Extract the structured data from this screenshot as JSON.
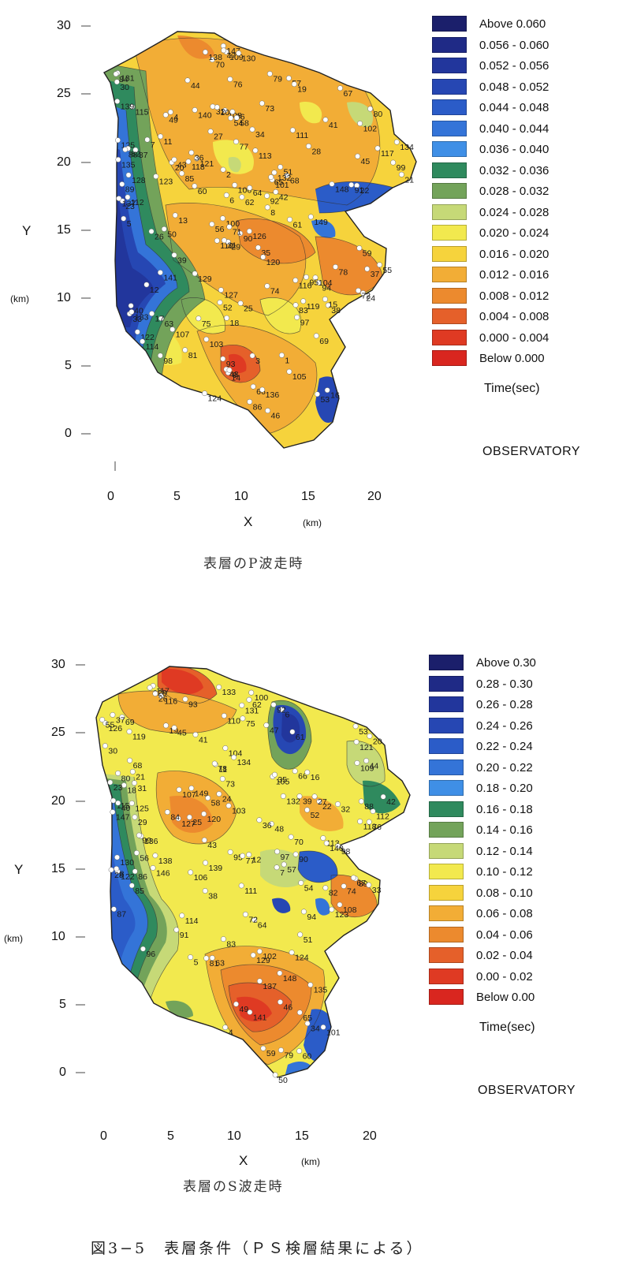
{
  "maps": [
    {
      "id": "p",
      "caption": "表層のP波走時",
      "x_ticks": [
        "0",
        "5",
        "10",
        "15",
        "20"
      ],
      "y_ticks": [
        "30",
        "25",
        "20",
        "15",
        "10",
        "5",
        "0"
      ],
      "x_label": "X",
      "x_unit": "(km)",
      "y_label": "Y",
      "y_unit": "(km)",
      "legend_title": "Time(sec)",
      "legend_note": "OBSERVATORY",
      "legend": [
        {
          "label": "Above   0.060",
          "color": "#1b1f6b"
        },
        {
          "label": "0.056 - 0.060",
          "color": "#1f2a86"
        },
        {
          "label": "0.052 - 0.056",
          "color": "#22369c"
        },
        {
          "label": "0.048 - 0.052",
          "color": "#2647b3"
        },
        {
          "label": "0.044 - 0.048",
          "color": "#2b5cc8"
        },
        {
          "label": "0.040 - 0.044",
          "color": "#3474d8"
        },
        {
          "label": "0.036 - 0.040",
          "color": "#3f8fe6"
        },
        {
          "label": "0.032 - 0.036",
          "color": "#2f8a5e"
        },
        {
          "label": "0.028 - 0.032",
          "color": "#73a35a"
        },
        {
          "label": "0.024 - 0.028",
          "color": "#c6d977"
        },
        {
          "label": "0.020 - 0.024",
          "color": "#f2e94e"
        },
        {
          "label": "0.016 - 0.020",
          "color": "#f6d33c"
        },
        {
          "label": "0.012 - 0.016",
          "color": "#f2ad36"
        },
        {
          "label": "0.008 - 0.012",
          "color": "#ec8a2e"
        },
        {
          "label": "0.004 - 0.008",
          "color": "#e5602a"
        },
        {
          "label": "0.000 - 0.004",
          "color": "#df3a23"
        },
        {
          "label": "Below   0.000",
          "color": "#d9261f"
        }
      ],
      "stations": [
        "112",
        "110",
        "111",
        "108",
        "113",
        "122",
        "121",
        "96",
        "101",
        "94",
        "115",
        "109",
        "116",
        "117",
        "100",
        "93",
        "6",
        "4",
        "107",
        "104",
        "118",
        "123",
        "97",
        "99",
        "92",
        "14",
        "8",
        "102",
        "119",
        "105",
        "98",
        "3",
        "13",
        "11",
        "70",
        "106",
        "18",
        "95",
        "20",
        "7",
        "2",
        "66",
        "64",
        "61",
        "24",
        "22",
        "25",
        "16",
        "1",
        "147",
        "68",
        "69",
        "62",
        "57",
        "19",
        "26",
        "21",
        "12",
        "63",
        "65",
        "67",
        "60",
        "59",
        "30",
        "58",
        "56",
        "29",
        "32",
        "33",
        "34",
        "140",
        "149",
        "141",
        "148",
        "139",
        "133",
        "46",
        "43",
        "44",
        "37",
        "38",
        "39",
        "40",
        "55",
        "36",
        "35",
        "128",
        "126",
        "132",
        "131",
        "124",
        "53",
        "48",
        "47",
        "45",
        "49",
        "78",
        "76",
        "77",
        "50",
        "73",
        "74",
        "130",
        "125",
        "127",
        "136",
        "134",
        "51",
        "79",
        "83",
        "82",
        "90",
        "86",
        "135",
        "84",
        "87",
        "88",
        "89",
        "81",
        "71",
        "72",
        "75",
        "54",
        "41",
        "42",
        "9",
        "5",
        "10",
        "15",
        "17",
        "23",
        "27",
        "28",
        "31",
        "52",
        "80",
        "85",
        "91",
        "103",
        "114",
        "120",
        "129",
        "137",
        "138"
      ]
    },
    {
      "id": "s",
      "caption": "表層のS波走時",
      "x_ticks": [
        "0",
        "5",
        "10",
        "15",
        "20"
      ],
      "y_ticks": [
        "30",
        "25",
        "20",
        "15",
        "10",
        "5",
        "0"
      ],
      "x_label": "X",
      "x_unit": "(km)",
      "y_label": "Y",
      "y_unit": "(km)",
      "legend_title": "Time(sec)",
      "legend_note": "OBSERVATORY",
      "legend": [
        {
          "label": "Above   0.30",
          "color": "#1b1f6b"
        },
        {
          "label": "0.28 - 0.30",
          "color": "#1f2a86"
        },
        {
          "label": "0.26 - 0.28",
          "color": "#22369c"
        },
        {
          "label": "0.24 - 0.26",
          "color": "#2647b3"
        },
        {
          "label": "0.22 - 0.24",
          "color": "#2b5cc8"
        },
        {
          "label": "0.20 - 0.22",
          "color": "#3474d8"
        },
        {
          "label": "0.18 - 0.20",
          "color": "#3f8fe6"
        },
        {
          "label": "0.16 - 0.18",
          "color": "#2f8a5e"
        },
        {
          "label": "0.14 - 0.16",
          "color": "#73a35a"
        },
        {
          "label": "0.12 - 0.14",
          "color": "#c6d977"
        },
        {
          "label": "0.10 - 0.12",
          "color": "#f2e94e"
        },
        {
          "label": "0.08 - 0.10",
          "color": "#f6d33c"
        },
        {
          "label": "0.06 - 0.08",
          "color": "#f2ad36"
        },
        {
          "label": "0.04 - 0.06",
          "color": "#ec8a2e"
        },
        {
          "label": "0.02 - 0.04",
          "color": "#e5602a"
        },
        {
          "label": "0.00 - 0.02",
          "color": "#df3a23"
        },
        {
          "label": "Below   0.00",
          "color": "#d9261f"
        }
      ],
      "stations": [
        "112",
        "110",
        "111",
        "108",
        "113",
        "122",
        "120",
        "117",
        "109",
        "115",
        "116",
        "101",
        "94",
        "103",
        "107",
        "104",
        "118",
        "123",
        "97",
        "89",
        "6",
        "102",
        "119",
        "105",
        "98",
        "92",
        "8",
        "4",
        "11",
        "5",
        "66",
        "70",
        "106",
        "95",
        "20",
        "18",
        "147",
        "64",
        "61",
        "24",
        "22",
        "25",
        "16",
        "7",
        "68",
        "69",
        "62",
        "57",
        "19",
        "21",
        "23",
        "148",
        "63",
        "65",
        "67",
        "60",
        "59",
        "30",
        "29",
        "146",
        "58",
        "56",
        "33",
        "34",
        "38",
        "39",
        "40",
        "149",
        "128",
        "133",
        "46",
        "43",
        "44",
        "37",
        "141",
        "139",
        "126",
        "132",
        "49",
        "47",
        "45",
        "78",
        "75",
        "140",
        "124",
        "131",
        "53",
        "48",
        "77",
        "130",
        "125",
        "50",
        "73",
        "74",
        "72",
        "90",
        "136",
        "134",
        "127",
        "51",
        "79",
        "83",
        "82",
        "86",
        "135",
        "84",
        "88",
        "81",
        "87",
        "91",
        "12",
        "26",
        "27",
        "28",
        "31",
        "32",
        "35",
        "36",
        "41",
        "42",
        "52",
        "54",
        "55",
        "76",
        "80",
        "85",
        "93",
        "96",
        "99",
        "100",
        "114",
        "121",
        "129",
        "137",
        "138"
      ]
    }
  ],
  "figure_caption": "図3−5　表層条件（ＰＳ検層結果による）"
}
